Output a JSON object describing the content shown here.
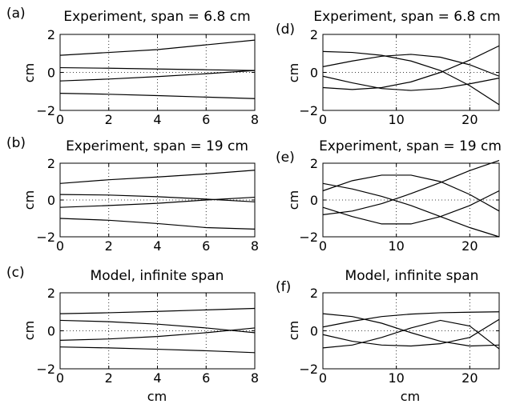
{
  "chart_data": [
    {
      "panel_label": "(a)",
      "type": "line",
      "title": "Experiment, span = 6.8 cm",
      "xlabel": "",
      "ylabel": "cm",
      "xlim": [
        0,
        8
      ],
      "ylim": [
        -2,
        2
      ],
      "xticks": [
        "0",
        "2",
        "4",
        "6",
        "8"
      ],
      "yticks": [
        "2",
        "0",
        "−2"
      ],
      "grid": true,
      "series": [
        {
          "x": [
            0,
            2,
            4,
            6,
            8
          ],
          "values": [
            0.9,
            1.05,
            1.2,
            1.45,
            1.7
          ]
        },
        {
          "x": [
            0,
            2,
            4,
            6,
            8
          ],
          "values": [
            0.25,
            0.22,
            0.18,
            0.14,
            0.1
          ]
        },
        {
          "x": [
            0,
            2,
            4,
            6,
            8
          ],
          "values": [
            -0.45,
            -0.35,
            -0.22,
            -0.07,
            0.1
          ]
        },
        {
          "x": [
            0,
            2,
            4,
            6,
            8
          ],
          "values": [
            -1.1,
            -1.15,
            -1.22,
            -1.3,
            -1.38
          ]
        }
      ]
    },
    {
      "panel_label": "(b)",
      "type": "line",
      "title": "Experiment, span = 19 cm",
      "xlabel": "",
      "ylabel": "cm",
      "xlim": [
        0,
        8
      ],
      "ylim": [
        -2,
        2
      ],
      "xticks": [
        "0",
        "2",
        "4",
        "6",
        "8"
      ],
      "yticks": [
        "2",
        "0",
        "−2"
      ],
      "grid": true,
      "series": [
        {
          "x": [
            0,
            2,
            4,
            6,
            8
          ],
          "values": [
            0.9,
            1.1,
            1.25,
            1.42,
            1.62
          ]
        },
        {
          "x": [
            0,
            2,
            4,
            6,
            8
          ],
          "values": [
            0.3,
            0.27,
            0.18,
            0.05,
            -0.1
          ]
        },
        {
          "x": [
            0,
            2,
            4,
            6,
            8
          ],
          "values": [
            -0.4,
            -0.3,
            -0.18,
            0.0,
            0.15
          ]
        },
        {
          "x": [
            0,
            2,
            4,
            6,
            8
          ],
          "values": [
            -1.0,
            -1.1,
            -1.28,
            -1.5,
            -1.58
          ]
        }
      ]
    },
    {
      "panel_label": "(c)",
      "type": "line",
      "title": "Model, infinite span",
      "xlabel": "cm",
      "ylabel": "cm",
      "xlim": [
        0,
        8
      ],
      "ylim": [
        -2,
        2
      ],
      "xticks": [
        "0",
        "2",
        "4",
        "6",
        "8"
      ],
      "yticks": [
        "2",
        "0",
        "−2"
      ],
      "grid": true,
      "series": [
        {
          "x": [
            0,
            2,
            4,
            6,
            8
          ],
          "values": [
            0.9,
            0.95,
            1.02,
            1.1,
            1.18
          ]
        },
        {
          "x": [
            0,
            2,
            4,
            6,
            8
          ],
          "values": [
            0.55,
            0.48,
            0.35,
            0.15,
            -0.1
          ]
        },
        {
          "x": [
            0,
            2,
            4,
            6,
            8
          ],
          "values": [
            -0.5,
            -0.43,
            -0.3,
            -0.1,
            0.15
          ]
        },
        {
          "x": [
            0,
            2,
            4,
            6,
            8
          ],
          "values": [
            -0.85,
            -0.9,
            -0.97,
            -1.05,
            -1.15
          ]
        }
      ]
    },
    {
      "panel_label": "(d)",
      "type": "line",
      "title": "Experiment, span = 6.8 cm",
      "xlabel": "",
      "ylabel": "cm",
      "xlim": [
        0,
        24
      ],
      "ylim": [
        -2,
        2
      ],
      "xticks": [
        "0",
        "10",
        "20"
      ],
      "yticks": [
        "2",
        "0",
        "−2"
      ],
      "grid": true,
      "series": [
        {
          "x": [
            0,
            4,
            8,
            12,
            16,
            20,
            24
          ],
          "values": [
            1.1,
            1.05,
            0.9,
            0.6,
            0.1,
            -0.7,
            -1.7
          ]
        },
        {
          "x": [
            0,
            4,
            8,
            12,
            16,
            20,
            24
          ],
          "values": [
            0.3,
            0.6,
            0.85,
            0.95,
            0.8,
            0.4,
            -0.2
          ]
        },
        {
          "x": [
            0,
            4,
            8,
            12,
            16,
            20,
            24
          ],
          "values": [
            -0.2,
            -0.55,
            -0.85,
            -0.95,
            -0.85,
            -0.6,
            -0.3
          ]
        },
        {
          "x": [
            0,
            4,
            8,
            12,
            16,
            20,
            24
          ],
          "values": [
            -0.8,
            -0.9,
            -0.8,
            -0.5,
            0.0,
            0.65,
            1.4
          ]
        }
      ]
    },
    {
      "panel_label": "(e)",
      "type": "line",
      "title": "Experiment, span = 19 cm",
      "xlabel": "",
      "ylabel": "cm",
      "xlim": [
        0,
        24
      ],
      "ylim": [
        -2,
        2
      ],
      "xticks": [
        "0",
        "10",
        "20"
      ],
      "yticks": [
        "2",
        "0",
        "−2"
      ],
      "grid": true,
      "series": [
        {
          "x": [
            0,
            4,
            8,
            12,
            16,
            20,
            24
          ],
          "values": [
            0.5,
            1.05,
            1.35,
            1.35,
            1.0,
            0.3,
            -0.6
          ]
        },
        {
          "x": [
            0,
            4,
            8,
            12,
            16,
            20,
            24
          ],
          "values": [
            0.9,
            0.6,
            0.2,
            -0.3,
            -0.9,
            -1.5,
            -2.0
          ]
        },
        {
          "x": [
            0,
            4,
            8,
            12,
            16,
            20,
            24
          ],
          "values": [
            -0.4,
            -0.9,
            -1.3,
            -1.3,
            -0.9,
            -0.3,
            0.5
          ]
        },
        {
          "x": [
            0,
            4,
            8,
            12,
            16,
            20,
            24
          ],
          "values": [
            -0.8,
            -0.6,
            -0.2,
            0.35,
            0.95,
            1.6,
            2.15
          ]
        }
      ]
    },
    {
      "panel_label": "(f)",
      "type": "line",
      "title": "Model, infinite span",
      "xlabel": "cm",
      "ylabel": "cm",
      "xlim": [
        0,
        24
      ],
      "ylim": [
        -2,
        2
      ],
      "xticks": [
        "0",
        "10",
        "20"
      ],
      "yticks": [
        "2",
        "0",
        "−2"
      ],
      "grid": true,
      "series": [
        {
          "x": [
            0,
            4,
            8,
            12,
            16,
            20,
            24
          ],
          "values": [
            0.9,
            0.75,
            0.4,
            -0.1,
            -0.55,
            -0.8,
            -0.75
          ]
        },
        {
          "x": [
            0,
            4,
            8,
            12,
            16,
            20,
            24
          ],
          "values": [
            0.2,
            0.5,
            0.75,
            0.88,
            0.95,
            0.98,
            1.0
          ]
        },
        {
          "x": [
            0,
            4,
            8,
            12,
            16,
            20,
            24
          ],
          "values": [
            -0.2,
            -0.55,
            -0.75,
            -0.8,
            -0.68,
            -0.35,
            0.6
          ]
        },
        {
          "x": [
            0,
            4,
            8,
            12,
            16,
            20,
            24
          ],
          "values": [
            -0.9,
            -0.75,
            -0.35,
            0.15,
            0.55,
            0.25,
            -0.95
          ]
        }
      ]
    }
  ]
}
